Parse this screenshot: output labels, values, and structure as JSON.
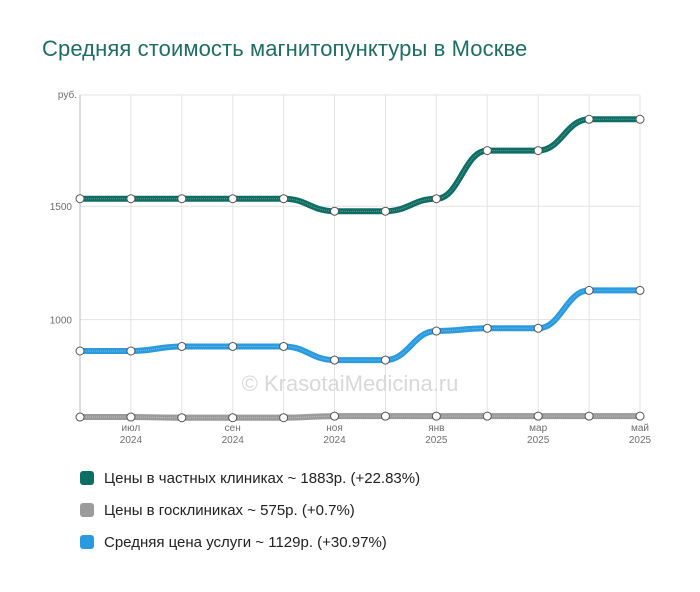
{
  "title": "Средняя стоимость магнитопунктуры в Москве",
  "watermark": "© KrasotaiMedicina.ru",
  "legend": [
    {
      "label": "Цены в частных клиниках ~ 1883р. (+22.83%)",
      "color": "#0e6e64"
    },
    {
      "label": "Цены в госклиниках ~ 575р. (+0.7%)",
      "color": "#9b9b9b"
    },
    {
      "label": "Средняя цена услуги ~ 1129р. (+30.97%)",
      "color": "#2a9be0"
    }
  ],
  "chart_data": {
    "type": "line",
    "title": "Средняя стоимость магнитопунктуры в Москве",
    "ylabel": "руб.",
    "ylim": [
      580,
      1990
    ],
    "yticks": [
      1000,
      1500
    ],
    "x": [
      "2024-06",
      "2024-07",
      "2024-08",
      "2024-09",
      "2024-10",
      "2024-11",
      "2024-12",
      "2025-01",
      "2025-02",
      "2025-03",
      "2025-04",
      "2025-05"
    ],
    "x_tick_labels": [
      {
        "month": "июл",
        "year": "2024"
      },
      {
        "month": "сен",
        "year": "2024"
      },
      {
        "month": "ноя",
        "year": "2024"
      },
      {
        "month": "янв",
        "year": "2025"
      },
      {
        "month": "мар",
        "year": "2025"
      },
      {
        "month": "май",
        "year": "2025"
      }
    ],
    "x_tick_index": [
      1,
      3,
      5,
      7,
      9,
      11
    ],
    "grid": true,
    "legend_position": "bottom",
    "series": [
      {
        "name": "Цены в частных клиниках",
        "color": "#0e6e64",
        "values": [
          1533,
          1533,
          1533,
          1533,
          1533,
          1478,
          1478,
          1533,
          1745,
          1745,
          1883,
          1883
        ]
      },
      {
        "name": "Цены в госклиниках",
        "color": "#9b9b9b",
        "values": [
          571,
          571,
          568,
          568,
          568,
          575,
          575,
          575,
          575,
          575,
          575,
          575
        ]
      },
      {
        "name": "Средняя цена услуги",
        "color": "#2a9be0",
        "values": [
          862,
          862,
          882,
          882,
          882,
          822,
          822,
          950,
          962,
          962,
          1129,
          1129
        ]
      }
    ]
  }
}
